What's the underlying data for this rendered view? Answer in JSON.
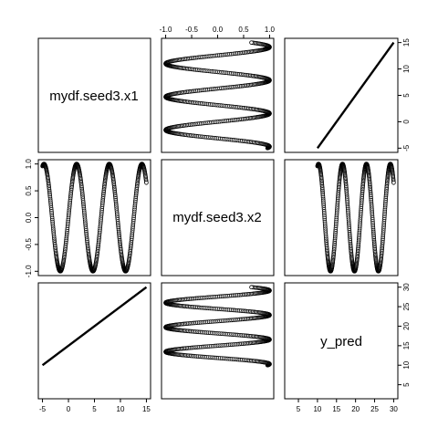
{
  "chart_data": {
    "type": "scatter",
    "layout": "pairs-matrix",
    "variables": [
      {
        "name": "mydf.seed3.x1",
        "lim": [
          -5,
          15
        ],
        "ticks": [
          -5,
          0,
          5,
          10,
          15
        ]
      },
      {
        "name": "mydf.seed3.x2",
        "lim": [
          -1,
          1
        ],
        "ticks": [
          -1.0,
          -0.5,
          0.0,
          0.5,
          1.0
        ]
      },
      {
        "name": "y_pred",
        "lim": [
          2.5,
          30
        ],
        "ticks": [
          5,
          10,
          15,
          20,
          25,
          30
        ]
      }
    ],
    "relationships": {
      "x2": "sin(x1)",
      "y_pred": "x1 + 15"
    },
    "x1_range": [
      -5,
      15
    ],
    "n_points": 600,
    "colors": {
      "point_fill": "#ffffff",
      "point_stroke": "#000000",
      "frame": "#000000"
    }
  }
}
